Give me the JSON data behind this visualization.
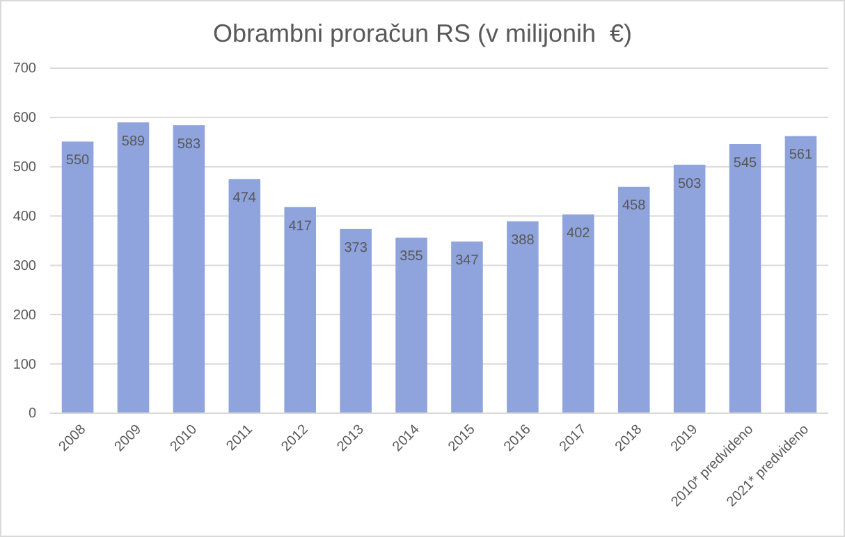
{
  "chart_data": {
    "type": "bar",
    "title": "Obrambni proračun RS (v milijonih  €)",
    "categories": [
      "2008",
      "2009",
      "2010",
      "2011",
      "2012",
      "2013",
      "2014",
      "2015",
      "2016",
      "2017",
      "2018",
      "2019",
      "2010* predvideno",
      "2021* predvideno"
    ],
    "values": [
      550,
      589,
      583,
      474,
      417,
      373,
      355,
      347,
      388,
      402,
      458,
      503,
      545,
      561
    ],
    "color": "#8fa3dc",
    "ylim": [
      0,
      700
    ],
    "yticks": [
      0,
      100,
      200,
      300,
      400,
      500,
      600,
      700
    ],
    "grid": "y",
    "data_labels": true
  }
}
